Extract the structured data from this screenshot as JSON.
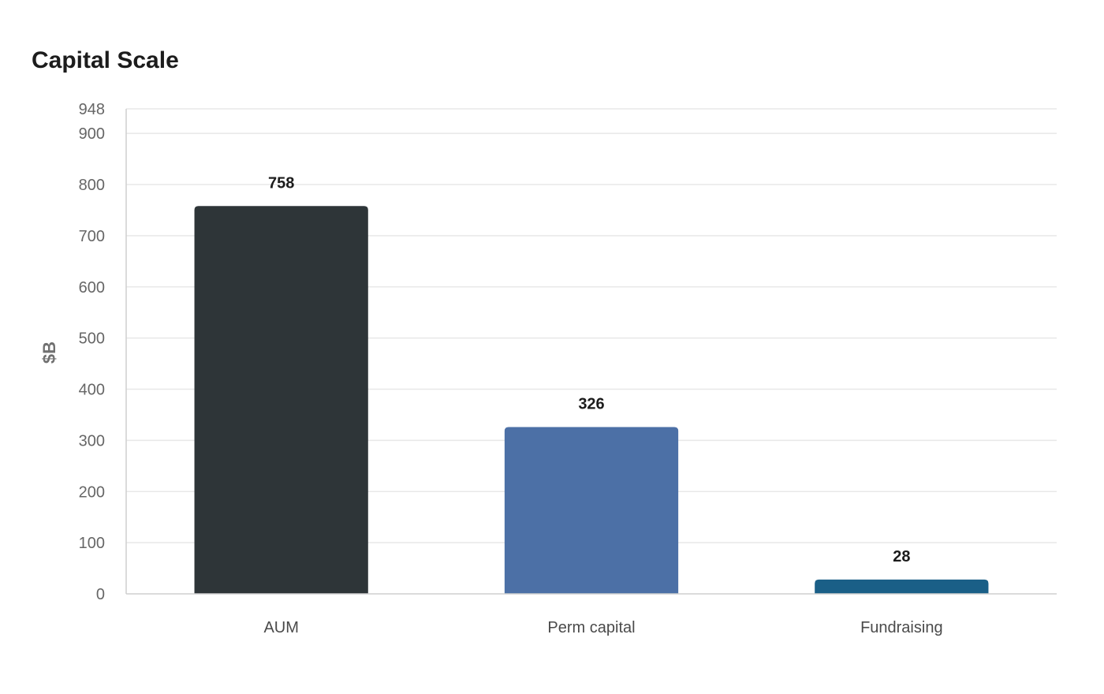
{
  "chart_data": {
    "type": "bar",
    "title": "Capital Scale",
    "xlabel": "",
    "ylabel": "$B",
    "categories": [
      "AUM",
      "Perm capital",
      "Fundraising"
    ],
    "values": [
      758,
      326,
      28
    ],
    "value_labels": [
      "758",
      "326",
      "28"
    ],
    "colors": [
      "#2e3538",
      "#4c70a6",
      "#1a5f87"
    ],
    "ylim": [
      0,
      948
    ],
    "yticks": [
      0,
      100,
      200,
      300,
      400,
      500,
      600,
      700,
      800,
      900,
      948
    ],
    "grid": true,
    "legend": "none"
  }
}
